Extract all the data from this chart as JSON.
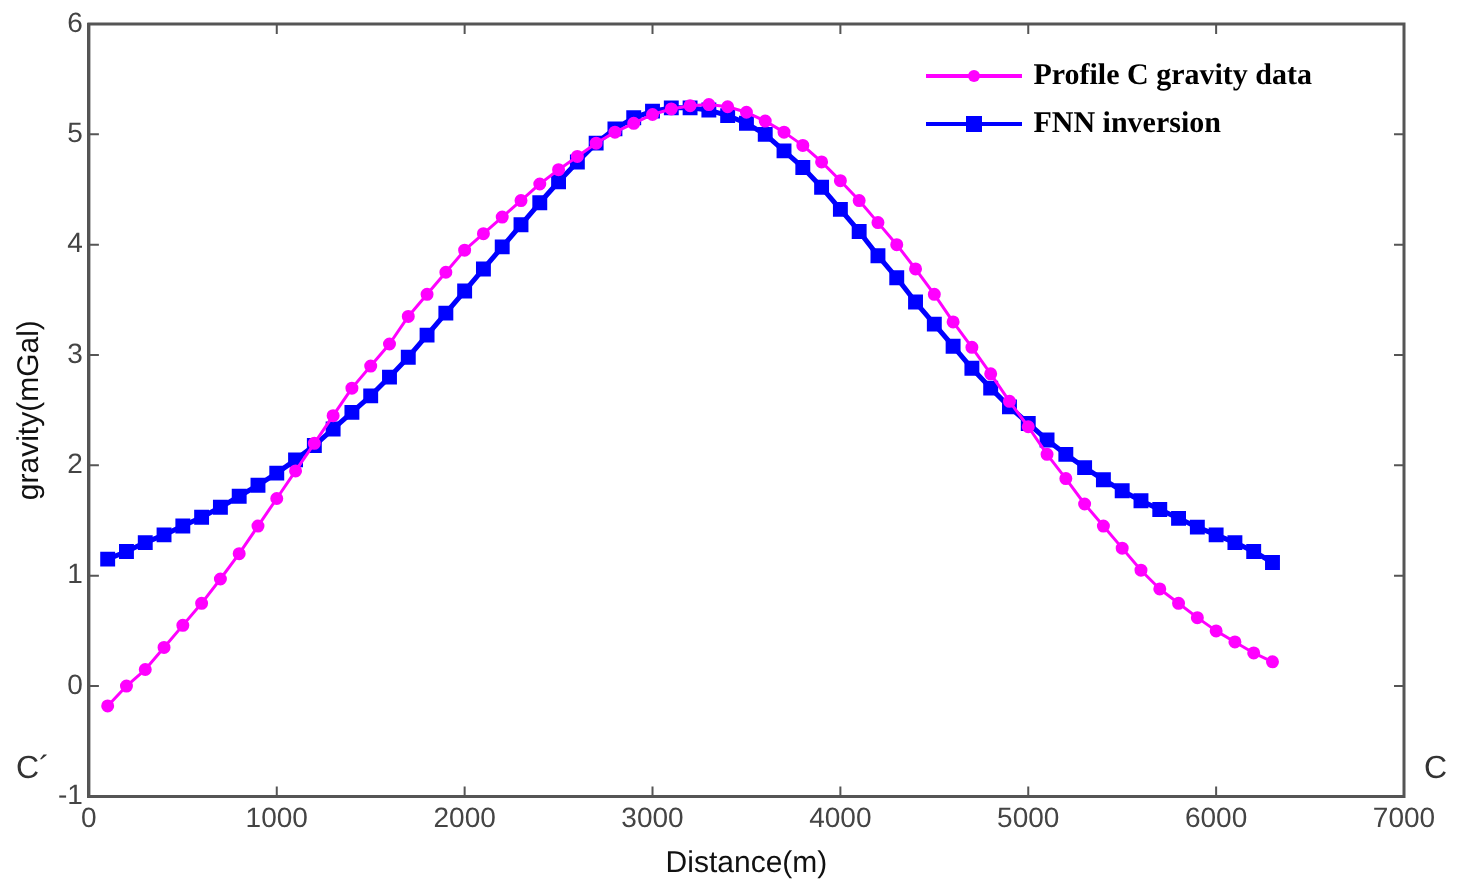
{
  "chart_data": {
    "type": "line",
    "xlabel": "Distance(m)",
    "ylabel": "gravity(mGal)",
    "x": [
      100,
      200,
      300,
      400,
      500,
      600,
      700,
      800,
      900,
      1000,
      1100,
      1200,
      1300,
      1400,
      1500,
      1600,
      1700,
      1800,
      1900,
      2000,
      2100,
      2200,
      2300,
      2400,
      2500,
      2600,
      2700,
      2800,
      2900,
      3000,
      3100,
      3200,
      3300,
      3400,
      3500,
      3600,
      3700,
      3800,
      3900,
      4000,
      4100,
      4200,
      4300,
      4400,
      4500,
      4600,
      4700,
      4800,
      4900,
      5000,
      5100,
      5200,
      5300,
      5400,
      5500,
      5600,
      5700,
      5800,
      5900,
      6000,
      6100,
      6200,
      6300
    ],
    "series": [
      {
        "name": "Profile C gravity data",
        "color": "#ff00ff",
        "marker": "circle",
        "values": [
          -0.18,
          0,
          0.15,
          0.35,
          0.55,
          0.75,
          0.97,
          1.2,
          1.45,
          1.7,
          1.95,
          2.2,
          2.45,
          2.7,
          2.9,
          3.1,
          3.35,
          3.55,
          3.75,
          3.95,
          4.1,
          4.25,
          4.4,
          4.55,
          4.68,
          4.8,
          4.92,
          5.02,
          5.1,
          5.18,
          5.23,
          5.26,
          5.27,
          5.25,
          5.2,
          5.12,
          5.02,
          4.9,
          4.75,
          4.58,
          4.4,
          4.2,
          4.0,
          3.78,
          3.55,
          3.3,
          3.07,
          2.83,
          2.58,
          2.35,
          2.1,
          1.88,
          1.65,
          1.45,
          1.25,
          1.05,
          0.88,
          0.75,
          0.62,
          0.5,
          0.4,
          0.3,
          0.22
        ]
      },
      {
        "name": "FNN inversion",
        "color": "#0000ff",
        "marker": "square",
        "values": [
          1.15,
          1.22,
          1.3,
          1.37,
          1.45,
          1.53,
          1.62,
          1.72,
          1.82,
          1.93,
          2.05,
          2.18,
          2.33,
          2.48,
          2.63,
          2.8,
          2.98,
          3.18,
          3.38,
          3.58,
          3.78,
          3.98,
          4.18,
          4.38,
          4.57,
          4.75,
          4.92,
          5.05,
          5.15,
          5.21,
          5.24,
          5.24,
          5.22,
          5.17,
          5.1,
          5.0,
          4.85,
          4.7,
          4.52,
          4.32,
          4.12,
          3.9,
          3.7,
          3.48,
          3.28,
          3.08,
          2.88,
          2.7,
          2.53,
          2.38,
          2.23,
          2.1,
          1.98,
          1.87,
          1.77,
          1.68,
          1.6,
          1.52,
          1.44,
          1.37,
          1.3,
          1.22,
          1.12
        ]
      }
    ],
    "xlim": [
      0,
      7000
    ],
    "xticks": [
      0,
      1000,
      2000,
      3000,
      4000,
      5000,
      6000,
      7000
    ],
    "ylim": [
      -1,
      6
    ],
    "yticks": [
      -1,
      0,
      1,
      2,
      3,
      4,
      5,
      6
    ],
    "grid": false,
    "legend": "top right",
    "annotations": [
      "C´",
      "C"
    ]
  }
}
